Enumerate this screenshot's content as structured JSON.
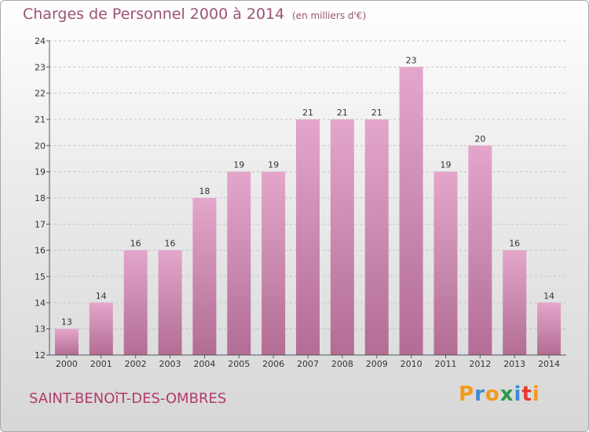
{
  "header": {
    "title": "Charges de Personnel 2000 à 2014",
    "unit": "(en milliers d'€)"
  },
  "footer": {
    "place": "SAINT-BENOîT-DES-OMBRES",
    "logo": "Proxiti"
  },
  "colors": {
    "bar_top": "#e4a6cb",
    "bar_bottom": "#b26d94",
    "title": "#9b5276",
    "place": "#b23a6a",
    "logo_letters": [
      "#f39a1b",
      "#3a8ad4",
      "#f39a1b",
      "#2c9a48",
      "#3a8ad4",
      "#e63b2e",
      "#f39a1b"
    ]
  },
  "chart_data": {
    "type": "bar",
    "categories": [
      "2000",
      "2001",
      "2002",
      "2003",
      "2004",
      "2005",
      "2006",
      "2007",
      "2008",
      "2009",
      "2010",
      "2011",
      "2012",
      "2013",
      "2014"
    ],
    "values": [
      13,
      14,
      16,
      16,
      18,
      19,
      19,
      21,
      21,
      21,
      23,
      19,
      20,
      16,
      14
    ],
    "ylim": [
      12,
      24
    ],
    "yticks": [
      12,
      13,
      14,
      15,
      16,
      17,
      18,
      19,
      20,
      21,
      22,
      23,
      24
    ],
    "grid": true,
    "title": "Charges de Personnel 2000 à 2014",
    "xlabel": "",
    "ylabel": ""
  }
}
